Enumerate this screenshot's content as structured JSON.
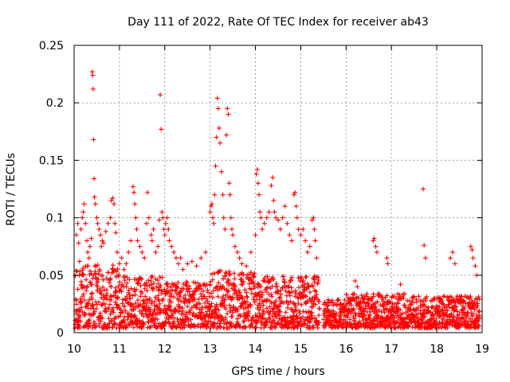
{
  "chart_data": {
    "type": "scatter",
    "title": "Day 111 of 2022, Rate Of TEC Index for receiver ab43",
    "xlabel": "GPS time / hours",
    "ylabel": "ROTI / TECUs",
    "xlim": [
      10,
      19
    ],
    "ylim": [
      0,
      0.25
    ],
    "xticks": [
      "10",
      "11",
      "12",
      "13",
      "14",
      "15",
      "16",
      "17",
      "18",
      "19"
    ],
    "yticks": [
      "0",
      "0.05",
      "0.1",
      "0.15",
      "0.2",
      "0.25"
    ],
    "grid": true,
    "marker": "+",
    "color": "#ff0000",
    "series": [
      {
        "points": [
          [
            10.05,
            0.085
          ],
          [
            10.08,
            0.095
          ],
          [
            10.1,
            0.078
          ],
          [
            10.12,
            0.062
          ],
          [
            10.15,
            0.09
          ],
          [
            10.18,
            0.1
          ],
          [
            10.2,
            0.105
          ],
          [
            10.22,
            0.112
          ],
          [
            10.25,
            0.095
          ],
          [
            10.28,
            0.08
          ],
          [
            10.3,
            0.07
          ],
          [
            10.33,
            0.065
          ],
          [
            10.35,
            0.075
          ],
          [
            10.38,
            0.082
          ],
          [
            10.4,
            0.227
          ],
          [
            10.41,
            0.224
          ],
          [
            10.42,
            0.212
          ],
          [
            10.43,
            0.168
          ],
          [
            10.44,
            0.134
          ],
          [
            10.45,
            0.118
          ],
          [
            10.47,
            0.112
          ],
          [
            10.5,
            0.1
          ],
          [
            10.52,
            0.095
          ],
          [
            10.55,
            0.09
          ],
          [
            10.58,
            0.085
          ],
          [
            10.6,
            0.075
          ],
          [
            10.62,
            0.08
          ],
          [
            10.65,
            0.078
          ],
          [
            10.7,
            0.088
          ],
          [
            10.75,
            0.095
          ],
          [
            10.8,
            0.1
          ],
          [
            10.82,
            0.115
          ],
          [
            10.85,
            0.117
          ],
          [
            10.88,
            0.112
          ],
          [
            10.9,
            0.095
          ],
          [
            10.92,
            0.087
          ],
          [
            10.95,
            0.07
          ],
          [
            11.0,
            0.06
          ],
          [
            11.05,
            0.065
          ],
          [
            11.1,
            0.055
          ],
          [
            11.15,
            0.06
          ],
          [
            11.2,
            0.07
          ],
          [
            11.25,
            0.08
          ],
          [
            11.3,
            0.127
          ],
          [
            11.32,
            0.122
          ],
          [
            11.34,
            0.112
          ],
          [
            11.36,
            0.1
          ],
          [
            11.38,
            0.09
          ],
          [
            11.4,
            0.08
          ],
          [
            11.45,
            0.075
          ],
          [
            11.5,
            0.07
          ],
          [
            11.55,
            0.065
          ],
          [
            11.6,
            0.095
          ],
          [
            11.62,
            0.122
          ],
          [
            11.65,
            0.1
          ],
          [
            11.7,
            0.085
          ],
          [
            11.72,
            0.08
          ],
          [
            11.75,
            0.09
          ],
          [
            11.8,
            0.07
          ],
          [
            11.85,
            0.075
          ],
          [
            11.88,
            0.098
          ],
          [
            11.9,
            0.207
          ],
          [
            11.92,
            0.177
          ],
          [
            11.94,
            0.105
          ],
          [
            11.96,
            0.1
          ],
          [
            11.98,
            0.09
          ],
          [
            12.0,
            0.085
          ],
          [
            12.02,
            0.095
          ],
          [
            12.05,
            0.1
          ],
          [
            12.08,
            0.09
          ],
          [
            12.1,
            0.08
          ],
          [
            12.15,
            0.075
          ],
          [
            12.2,
            0.07
          ],
          [
            12.25,
            0.065
          ],
          [
            12.3,
            0.06
          ],
          [
            12.35,
            0.065
          ],
          [
            12.4,
            0.055
          ],
          [
            12.5,
            0.06
          ],
          [
            12.6,
            0.062
          ],
          [
            12.7,
            0.058
          ],
          [
            12.8,
            0.065
          ],
          [
            12.9,
            0.07
          ],
          [
            13.0,
            0.105
          ],
          [
            13.02,
            0.11
          ],
          [
            13.04,
            0.112
          ],
          [
            13.06,
            0.1
          ],
          [
            13.08,
            0.095
          ],
          [
            13.1,
            0.12
          ],
          [
            13.12,
            0.145
          ],
          [
            13.14,
            0.17
          ],
          [
            13.16,
            0.204
          ],
          [
            13.18,
            0.195
          ],
          [
            13.2,
            0.178
          ],
          [
            13.22,
            0.165
          ],
          [
            13.25,
            0.14
          ],
          [
            13.28,
            0.12
          ],
          [
            13.3,
            0.1
          ],
          [
            13.33,
            0.09
          ],
          [
            13.36,
            0.172
          ],
          [
            13.38,
            0.195
          ],
          [
            13.4,
            0.19
          ],
          [
            13.42,
            0.13
          ],
          [
            13.44,
            0.12
          ],
          [
            13.46,
            0.1
          ],
          [
            13.48,
            0.09
          ],
          [
            13.5,
            0.085
          ],
          [
            13.55,
            0.075
          ],
          [
            13.6,
            0.07
          ],
          [
            13.65,
            0.065
          ],
          [
            13.7,
            0.06
          ],
          [
            13.8,
            0.058
          ],
          [
            13.9,
            0.07
          ],
          [
            14.0,
            0.085
          ],
          [
            14.02,
            0.138
          ],
          [
            14.04,
            0.142
          ],
          [
            14.06,
            0.13
          ],
          [
            14.08,
            0.12
          ],
          [
            14.1,
            0.105
          ],
          [
            14.12,
            0.1
          ],
          [
            14.15,
            0.09
          ],
          [
            14.2,
            0.095
          ],
          [
            14.25,
            0.1
          ],
          [
            14.3,
            0.105
          ],
          [
            14.35,
            0.128
          ],
          [
            14.38,
            0.135
          ],
          [
            14.4,
            0.115
          ],
          [
            14.42,
            0.105
          ],
          [
            14.45,
            0.1
          ],
          [
            14.5,
            0.098
          ],
          [
            14.55,
            0.09
          ],
          [
            14.6,
            0.1
          ],
          [
            14.65,
            0.11
          ],
          [
            14.7,
            0.095
          ],
          [
            14.75,
            0.085
          ],
          [
            14.8,
            0.08
          ],
          [
            14.85,
            0.12
          ],
          [
            14.87,
            0.122
          ],
          [
            14.9,
            0.11
          ],
          [
            14.92,
            0.1
          ],
          [
            14.95,
            0.09
          ],
          [
            15.0,
            0.085
          ],
          [
            15.05,
            0.09
          ],
          [
            15.1,
            0.08
          ],
          [
            15.15,
            0.07
          ],
          [
            15.2,
            0.075
          ],
          [
            15.25,
            0.098
          ],
          [
            15.28,
            0.1
          ],
          [
            15.3,
            0.09
          ],
          [
            15.32,
            0.08
          ],
          [
            15.35,
            0.065
          ],
          [
            16.6,
            0.08
          ],
          [
            16.62,
            0.082
          ],
          [
            16.65,
            0.075
          ],
          [
            16.68,
            0.07
          ],
          [
            16.9,
            0.065
          ],
          [
            16.92,
            0.06
          ],
          [
            17.7,
            0.125
          ],
          [
            17.72,
            0.076
          ],
          [
            17.75,
            0.065
          ],
          [
            18.3,
            0.065
          ],
          [
            18.35,
            0.07
          ],
          [
            18.4,
            0.06
          ],
          [
            18.75,
            0.075
          ],
          [
            18.78,
            0.072
          ],
          [
            18.8,
            0.065
          ],
          [
            18.85,
            0.058
          ],
          [
            18.88,
            0.05
          ],
          [
            16.2,
            0.045
          ],
          [
            16.25,
            0.04
          ],
          [
            17.2,
            0.042
          ]
        ]
      }
    ]
  }
}
